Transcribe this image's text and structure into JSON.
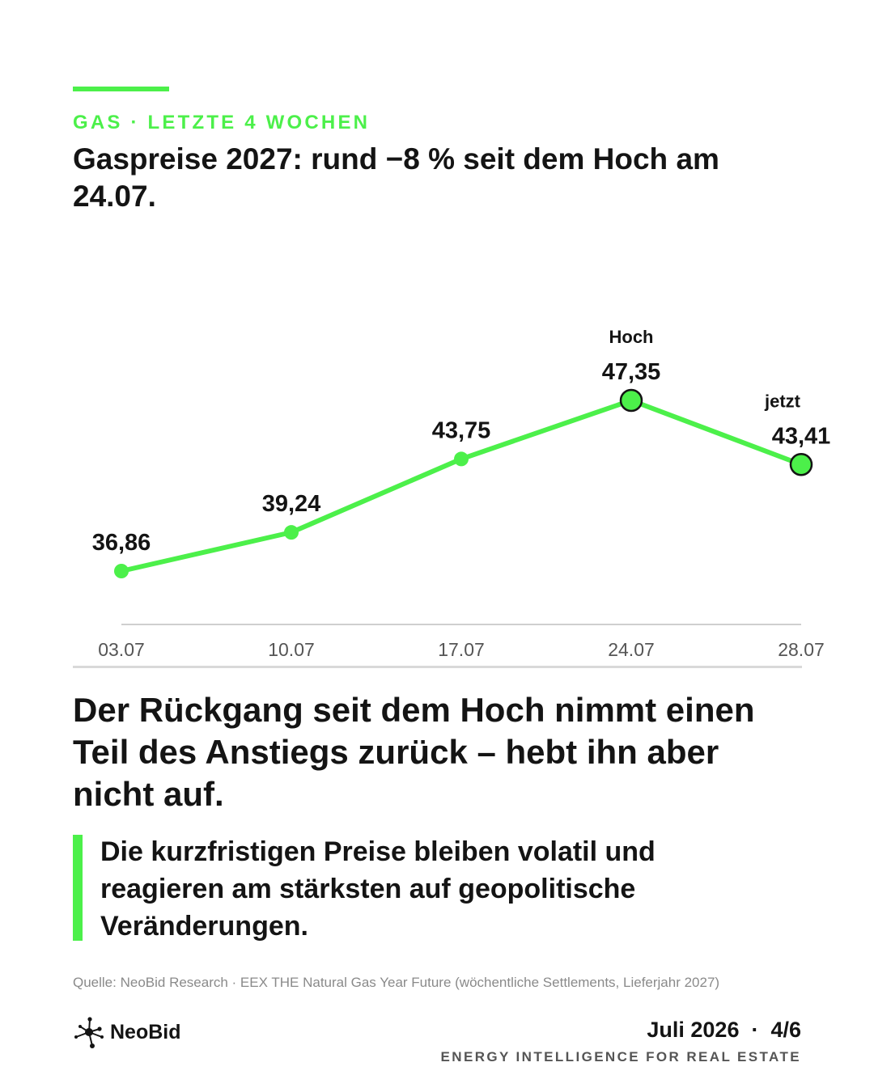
{
  "header": {
    "kicker": "GAS · LETZTE 4 WOCHEN",
    "title": "Gaspreise 2027: rund −8 % seit dem Hoch am 24.07."
  },
  "chart_data": {
    "type": "line",
    "categories": [
      "03.07",
      "10.07",
      "17.07",
      "24.07",
      "28.07"
    ],
    "value_labels": [
      "36,86",
      "39,24",
      "43,75",
      "47,35",
      "43,41"
    ],
    "series": [
      {
        "values": [
          36.86,
          39.24,
          43.75,
          47.35,
          43.41
        ]
      }
    ],
    "annotations": [
      {
        "category": "24.07",
        "text": "Hoch"
      },
      {
        "category": "28.07",
        "text": "jetzt"
      }
    ],
    "highlighted_points": [
      "24.07",
      "28.07"
    ],
    "color": "#4cf04a",
    "grid": false
  },
  "body": {
    "headline": "Der Rückgang seit dem Hoch nimmt einen Teil des Anstiegs zurück – hebt ihn aber nicht auf.",
    "quote": "Die kurzfristigen Preise bleiben volatil und reagieren am stärksten auf geopolitische Veränderungen."
  },
  "footer": {
    "source": "Quelle: NeoBid Research · EEX THE Natural Gas Year Future (wöchentliche Settlements, Lieferjahr 2027)",
    "brand_name": "NeoBid",
    "logo_icon": "molecule-icon",
    "date_page": "Juli 2026  ·  4/6",
    "tagline": "ENERGY INTELLIGENCE FOR REAL ESTATE"
  },
  "colors": {
    "accent": "#4cf04a",
    "text": "#141414",
    "muted": "#8a8a8a"
  }
}
